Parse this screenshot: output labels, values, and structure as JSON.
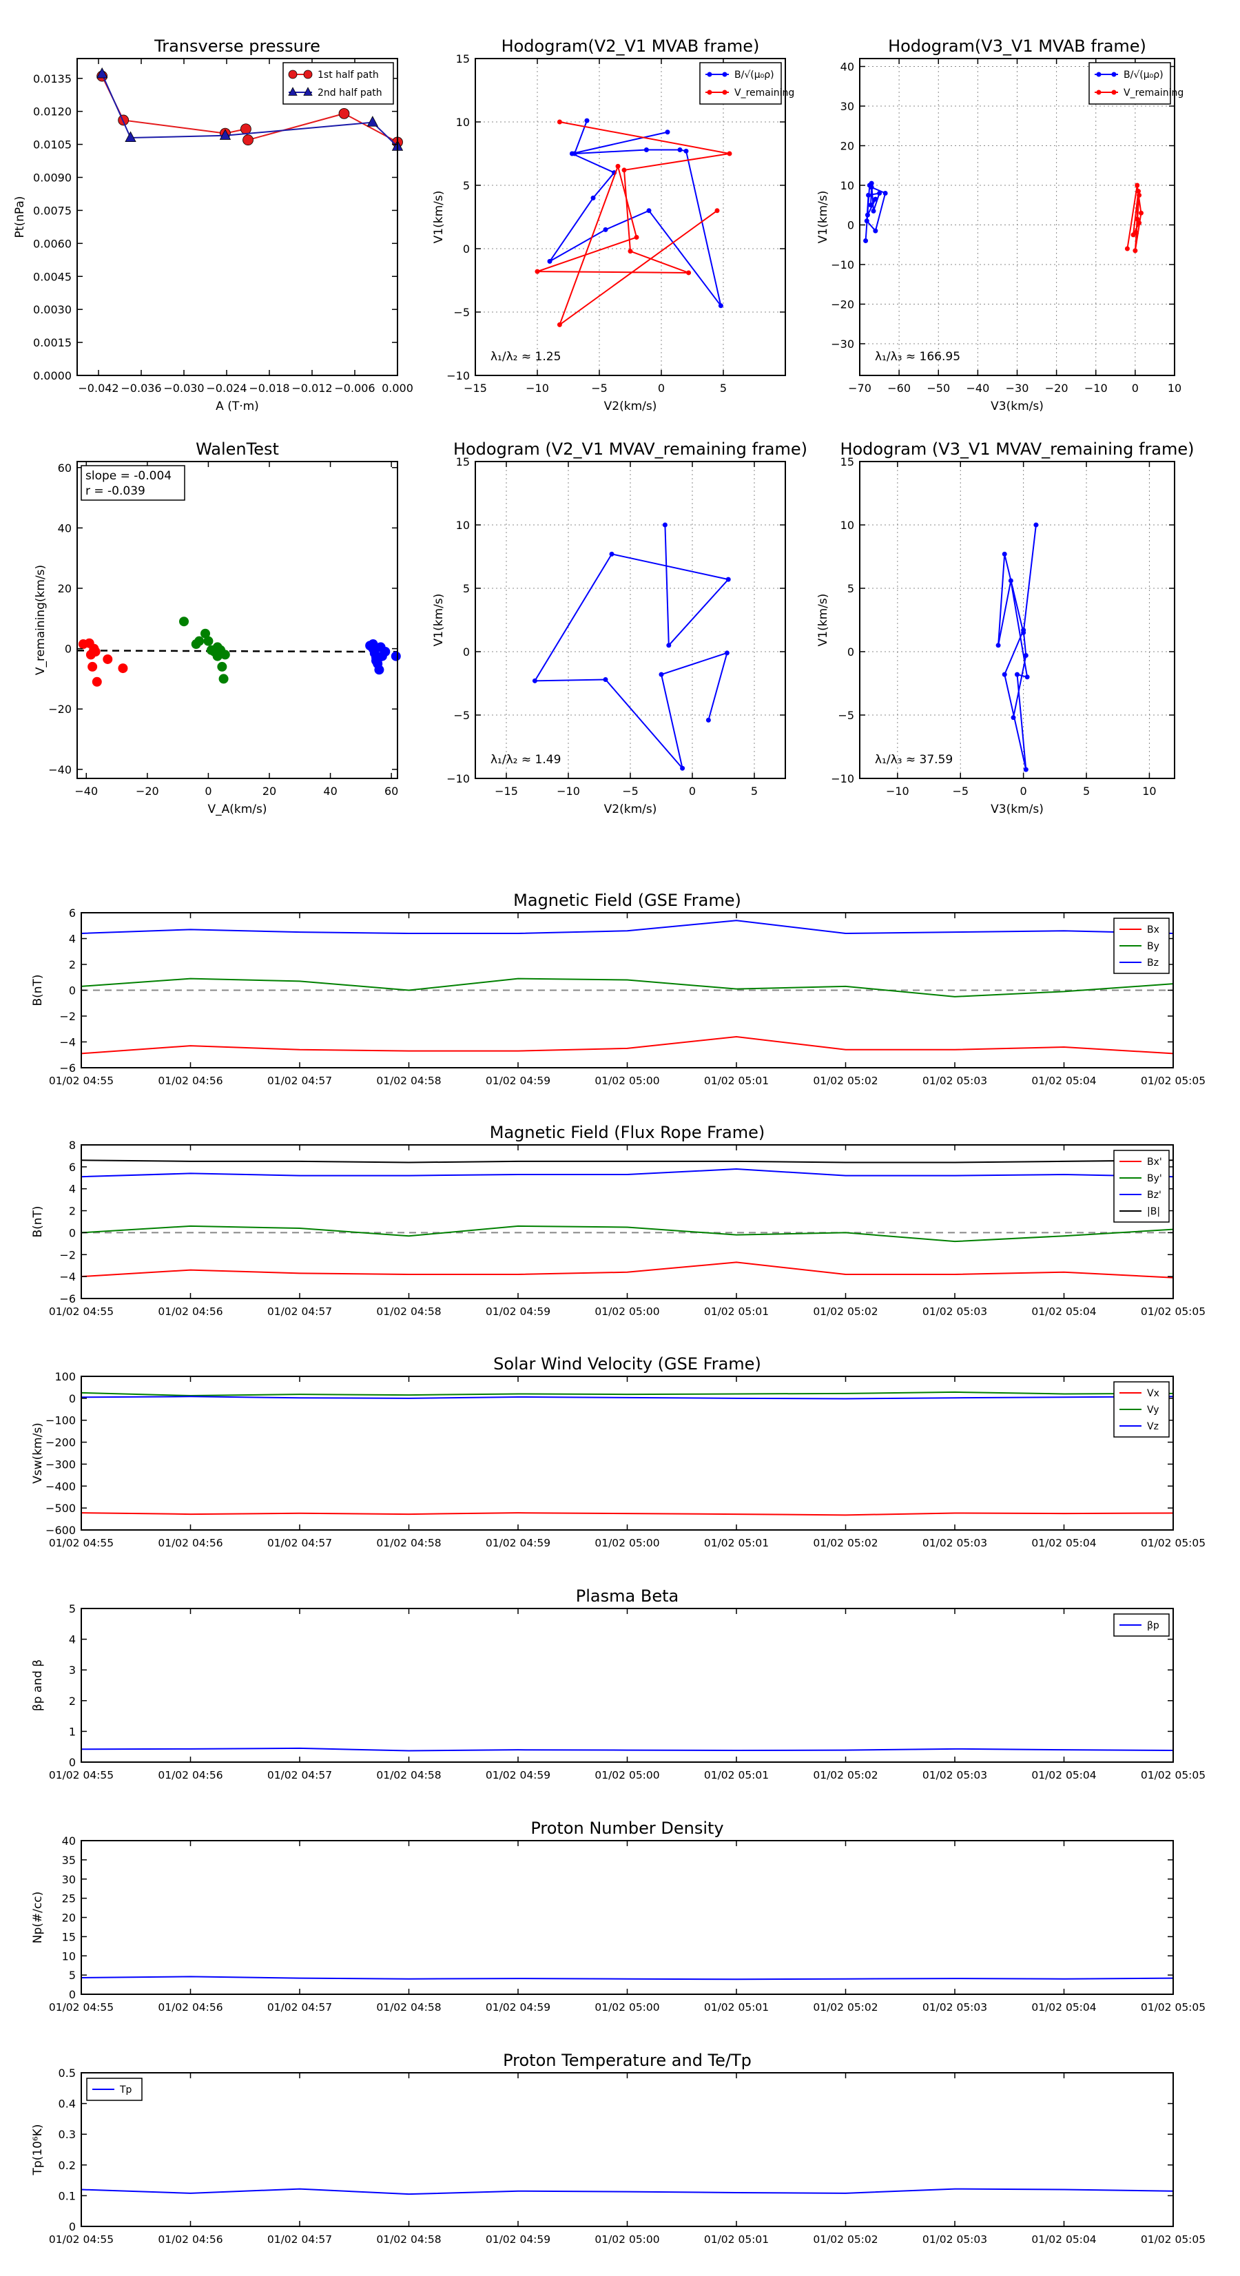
{
  "chart_data": [
    {
      "id": "transverse-pressure",
      "type": "line",
      "title": "Transverse pressure",
      "xlabel": "A (T·m)",
      "ylabel": "Pt(nPa)",
      "xlim": [
        -0.045,
        0.0
      ],
      "ylim": [
        0.0,
        0.0144
      ],
      "xticks": [
        -0.042,
        -0.036,
        -0.03,
        -0.024,
        -0.018,
        -0.012,
        -0.006,
        0.0
      ],
      "xticklabels": [
        "−0.042",
        "−0.036",
        "−0.030",
        "−0.024",
        "−0.018",
        "−0.012",
        "−0.006",
        "0.000"
      ],
      "yticks": [
        0.0,
        0.0015,
        0.003,
        0.0045,
        0.006,
        0.0075,
        0.009,
        0.0105,
        0.012,
        0.0135
      ],
      "yticklabels": [
        "0.0000",
        "0.0015",
        "0.0030",
        "0.0045",
        "0.0060",
        "0.0075",
        "0.0090",
        "0.0105",
        "0.0120",
        "0.0135"
      ],
      "grid": false,
      "legend": "top-right",
      "series": [
        {
          "name": "1st half path",
          "color": "#e41a1c",
          "marker": "circle",
          "x": [
            -0.0415,
            -0.0385,
            -0.0242,
            -0.0213,
            -0.021,
            -0.0075,
            0.0
          ],
          "y": [
            0.0136,
            0.0116,
            0.011,
            0.0112,
            0.0107,
            0.0119,
            0.0106
          ]
        },
        {
          "name": "2nd half path",
          "color": "#1a1aa8",
          "marker": "triangle",
          "x": [
            -0.0415,
            -0.0375,
            -0.0242,
            -0.0035,
            0.0
          ],
          "y": [
            0.0137,
            0.0108,
            0.0109,
            0.0115,
            0.0104
          ]
        }
      ]
    },
    {
      "id": "hodogram-v2-v1-mvab",
      "type": "line",
      "title": "Hodogram(V2_V1 MVAB frame)",
      "xlabel": "V2(km/s)",
      "ylabel": "V1(km/s)",
      "xlim": [
        -15,
        10
      ],
      "ylim": [
        -10,
        15
      ],
      "xticks": [
        -15,
        -10,
        -5,
        0,
        5
      ],
      "yticks": [
        -10,
        -5,
        0,
        5,
        10,
        15
      ],
      "grid": true,
      "legend": "top-right",
      "annotation": "λ₁/λ₂ ≈ 1.25",
      "series": [
        {
          "name": "B/√(μ₀ρ)",
          "color": "#0000ff",
          "x": [
            -6.0,
            -7.0,
            -1.2,
            1.5,
            2.0,
            4.8,
            -1.0,
            -4.5,
            -9.0,
            -5.5,
            -3.8,
            -7.2,
            0.5
          ],
          "y": [
            10.1,
            7.5,
            7.8,
            7.8,
            7.7,
            -4.5,
            3.0,
            1.5,
            -1.0,
            4.0,
            6.0,
            7.5,
            9.2
          ]
        },
        {
          "name": "V_remaining",
          "color": "#ff0000",
          "x": [
            -8.2,
            5.5,
            -3.0,
            -2.5,
            2.2,
            -10.0,
            -2.0,
            -3.5,
            -8.2,
            4.5
          ],
          "y": [
            10.0,
            7.5,
            6.2,
            -0.2,
            -1.9,
            -1.8,
            0.9,
            6.5,
            -6.0,
            3.0
          ]
        }
      ]
    },
    {
      "id": "hodogram-v3-v1-mvab",
      "type": "line",
      "title": "Hodogram(V3_V1 MVAB frame)",
      "xlabel": "V3(km/s)",
      "ylabel": "V1(km/s)",
      "xlim": [
        -70,
        10
      ],
      "ylim": [
        -38,
        42
      ],
      "xticks": [
        -70,
        -60,
        -50,
        -40,
        -30,
        -20,
        -10,
        0,
        10
      ],
      "yticks": [
        -30,
        -20,
        -10,
        0,
        10,
        20,
        30,
        40
      ],
      "grid": true,
      "legend": "top-right",
      "annotation": "λ₁/λ₃ ≈ 166.95",
      "series": [
        {
          "name": "B/√(μ₀ρ)",
          "color": "#0000ff",
          "x": [
            -68.5,
            -67.5,
            -67.0,
            -66.5,
            -65.0,
            -67.8,
            -68.2,
            -66.0,
            -63.5,
            -67.0,
            -67.2,
            -66.0,
            -68.0
          ],
          "y": [
            -4.0,
            10.0,
            10.5,
            3.5,
            8.0,
            7.5,
            1.0,
            -1.5,
            8.0,
            9.5,
            5.0,
            6.5,
            2.5
          ]
        },
        {
          "name": "V_remaining",
          "color": "#ff0000",
          "x": [
            -2.0,
            0.5,
            1.5,
            0.0,
            1.0,
            0.5,
            0.3,
            0.8,
            -0.5,
            1.0
          ],
          "y": [
            -6.0,
            10.0,
            3.0,
            -6.5,
            7.5,
            1.5,
            -2.0,
            8.5,
            -2.5,
            0.5
          ]
        }
      ]
    },
    {
      "id": "walen-test",
      "type": "scatter",
      "title": "WalenTest",
      "xlabel": "V_A(km/s)",
      "ylabel": "V_remaining(km/s)",
      "xlim": [
        -43,
        62
      ],
      "ylim": [
        -43,
        62
      ],
      "xticks": [
        -40,
        -20,
        0,
        20,
        40,
        60
      ],
      "yticks": [
        -40,
        -20,
        0,
        20,
        40,
        60
      ],
      "grid": false,
      "annotation": [
        "slope = -0.004",
        "r = -0.039"
      ],
      "fit": {
        "slope": -0.004,
        "intercept": -0.8,
        "color": "#000000",
        "style": "dashed"
      },
      "series": [
        {
          "color": "#ff0000",
          "x": [
            -41.0,
            -39.0,
            -38.5,
            -37.0,
            -38.0,
            -36.5,
            -33.0,
            -28.0,
            -37.5
          ],
          "y": [
            1.5,
            1.8,
            -2.0,
            -1.0,
            -6.0,
            -11.0,
            -3.5,
            -6.5,
            0.0
          ]
        },
        {
          "color": "#008000",
          "x": [
            -8.0,
            -4.0,
            -3.0,
            -1.0,
            0.0,
            1.0,
            2.0,
            3.0,
            4.0,
            4.5,
            5.0,
            5.5,
            4.0,
            3.0
          ],
          "y": [
            9.0,
            1.5,
            2.5,
            5.0,
            2.5,
            -0.5,
            -1.0,
            -2.5,
            -1.5,
            -6.0,
            -10.0,
            -2.0,
            -0.5,
            0.5
          ]
        },
        {
          "color": "#0000ff",
          "x": [
            53.0,
            54.0,
            54.5,
            55.0,
            55.5,
            56.0,
            56.5,
            57.0,
            54.0,
            55.0,
            58.0,
            61.5,
            55.5
          ],
          "y": [
            1.0,
            0.0,
            -1.5,
            -3.0,
            -5.0,
            -7.0,
            0.5,
            -2.5,
            1.5,
            -4.0,
            -1.0,
            -2.5,
            -3.5
          ]
        }
      ]
    },
    {
      "id": "hodogram-v2-v1-mvav",
      "type": "line",
      "title": "Hodogram (V2_V1 MVAV_remaining frame)",
      "xlabel": "V2(km/s)",
      "ylabel": "V1(km/s)",
      "xlim": [
        -17.5,
        7.5
      ],
      "ylim": [
        -10,
        15
      ],
      "xticks": [
        -15,
        -10,
        -5,
        0,
        5
      ],
      "yticks": [
        -10,
        -5,
        0,
        5,
        10,
        15
      ],
      "grid": true,
      "annotation": "λ₁/λ₂ ≈ 1.49",
      "series": [
        {
          "color": "#0000ff",
          "x": [
            -2.2,
            -1.9,
            2.9,
            -6.5,
            -12.7,
            -7.0,
            -0.8,
            -2.5,
            2.8,
            1.3
          ],
          "y": [
            10.0,
            0.5,
            5.7,
            7.7,
            -2.3,
            -2.2,
            -9.2,
            -1.8,
            -0.1,
            -5.4
          ]
        }
      ]
    },
    {
      "id": "hodogram-v3-v1-mvav",
      "type": "line",
      "title": "Hodogram (V3_V1 MVAV_remaining frame)",
      "xlabel": "V3(km/s)",
      "ylabel": "V1(km/s)",
      "xlim": [
        -13,
        12
      ],
      "ylim": [
        -10,
        15
      ],
      "xticks": [
        -10,
        -5,
        0,
        5,
        10
      ],
      "yticks": [
        -10,
        -5,
        0,
        5,
        10,
        15
      ],
      "grid": true,
      "annotation": "λ₁/λ₃ ≈ 37.59",
      "series": [
        {
          "color": "#0000ff",
          "x": [
            1.0,
            0.0,
            -1.5,
            -2.0,
            -1.0,
            0.3,
            -0.5,
            0.2,
            -1.5,
            0.0,
            0.2,
            -0.8
          ],
          "y": [
            10.0,
            1.5,
            7.7,
            0.5,
            5.6,
            -2.0,
            -1.8,
            -9.3,
            -1.8,
            1.7,
            -0.3,
            -5.2
          ]
        }
      ]
    },
    {
      "id": "magnetic-field-gse",
      "type": "line",
      "title": "Magnetic Field (GSE Frame)",
      "ylabel": "B(nT)",
      "x": [
        "01/02 04:55",
        "01/02 04:56",
        "01/02 04:57",
        "01/02 04:58",
        "01/02 04:59",
        "01/02 05:00",
        "01/02 05:01",
        "01/02 05:02",
        "01/02 05:03",
        "01/02 05:04",
        "01/02 05:05"
      ],
      "ylim": [
        -6,
        6
      ],
      "yticks": [
        -6,
        -4,
        -2,
        0,
        2,
        4,
        6
      ],
      "zero_line": true,
      "legend": "top-right",
      "series": [
        {
          "name": "Bx",
          "color": "#ff0000",
          "values": [
            -4.9,
            -4.3,
            -4.6,
            -4.7,
            -4.7,
            -4.5,
            -3.6,
            -4.6,
            -4.6,
            -4.4,
            -4.9
          ]
        },
        {
          "name": "By",
          "color": "#008000",
          "values": [
            0.3,
            0.9,
            0.7,
            0.0,
            0.9,
            0.8,
            0.1,
            0.3,
            -0.5,
            -0.1,
            0.5
          ]
        },
        {
          "name": "Bz",
          "color": "#0000ff",
          "values": [
            4.4,
            4.7,
            4.5,
            4.4,
            4.4,
            4.6,
            5.4,
            4.4,
            4.5,
            4.6,
            4.4
          ]
        }
      ]
    },
    {
      "id": "magnetic-field-flux-rope",
      "type": "line",
      "title": "Magnetic Field (Flux Rope Frame)",
      "ylabel": "B(nT)",
      "x": [
        "01/02 04:55",
        "01/02 04:56",
        "01/02 04:57",
        "01/02 04:58",
        "01/02 04:59",
        "01/02 05:00",
        "01/02 05:01",
        "01/02 05:02",
        "01/02 05:03",
        "01/02 05:04",
        "01/02 05:05"
      ],
      "ylim": [
        -6,
        8
      ],
      "yticks": [
        -6,
        -4,
        -2,
        0,
        2,
        4,
        6,
        8
      ],
      "zero_line": true,
      "legend": "top-right",
      "series": [
        {
          "name": "Bx'",
          "color": "#ff0000",
          "values": [
            -4.0,
            -3.4,
            -3.7,
            -3.8,
            -3.8,
            -3.6,
            -2.7,
            -3.8,
            -3.8,
            -3.6,
            -4.1
          ]
        },
        {
          "name": "By'",
          "color": "#008000",
          "values": [
            0.0,
            0.6,
            0.4,
            -0.3,
            0.6,
            0.5,
            -0.2,
            0.0,
            -0.8,
            -0.3,
            0.3
          ]
        },
        {
          "name": "Bz'",
          "color": "#0000ff",
          "values": [
            5.1,
            5.4,
            5.2,
            5.2,
            5.3,
            5.3,
            5.8,
            5.2,
            5.2,
            5.3,
            5.1
          ]
        },
        {
          "name": "|B|",
          "color": "#000000",
          "values": [
            6.6,
            6.5,
            6.5,
            6.4,
            6.5,
            6.5,
            6.5,
            6.4,
            6.4,
            6.5,
            6.6
          ]
        }
      ]
    },
    {
      "id": "solar-wind-velocity",
      "type": "line",
      "title": "Solar Wind Velocity (GSE Frame)",
      "ylabel": "Vsw(km/s)",
      "x": [
        "01/02 04:55",
        "01/02 04:56",
        "01/02 04:57",
        "01/02 04:58",
        "01/02 04:59",
        "01/02 05:00",
        "01/02 05:01",
        "01/02 05:02",
        "01/02 05:03",
        "01/02 05:04",
        "01/02 05:05"
      ],
      "ylim": [
        -600,
        100
      ],
      "yticks": [
        -600,
        -500,
        -400,
        -300,
        -200,
        -100,
        0,
        100
      ],
      "legend": "top-right",
      "series": [
        {
          "name": "Vx",
          "color": "#ff0000",
          "values": [
            -522,
            -528,
            -524,
            -528,
            -522,
            -525,
            -528,
            -532,
            -523,
            -525,
            -523
          ]
        },
        {
          "name": "Vy",
          "color": "#008000",
          "values": [
            25,
            12,
            18,
            15,
            20,
            18,
            20,
            22,
            28,
            20,
            22
          ]
        },
        {
          "name": "Vz",
          "color": "#0000ff",
          "values": [
            5,
            8,
            2,
            0,
            6,
            3,
            0,
            -2,
            2,
            5,
            8
          ]
        }
      ]
    },
    {
      "id": "plasma-beta",
      "type": "line",
      "title": "Plasma Beta",
      "ylabel": "βp and β",
      "x": [
        "01/02 04:55",
        "01/02 04:56",
        "01/02 04:57",
        "01/02 04:58",
        "01/02 04:59",
        "01/02 05:00",
        "01/02 05:01",
        "01/02 05:02",
        "01/02 05:03",
        "01/02 05:04",
        "01/02 05:05"
      ],
      "ylim": [
        0,
        5
      ],
      "yticks": [
        0,
        1,
        2,
        3,
        4,
        5
      ],
      "legend": "top-right",
      "series": [
        {
          "name": "βp",
          "color": "#0000ff",
          "values": [
            0.42,
            0.43,
            0.45,
            0.37,
            0.4,
            0.39,
            0.38,
            0.39,
            0.43,
            0.4,
            0.38
          ]
        }
      ]
    },
    {
      "id": "proton-number-density",
      "type": "line",
      "title": "Proton Number Density",
      "ylabel": "Np(#/cc)",
      "x": [
        "01/02 04:55",
        "01/02 04:56",
        "01/02 04:57",
        "01/02 04:58",
        "01/02 04:59",
        "01/02 05:00",
        "01/02 05:01",
        "01/02 05:02",
        "01/02 05:03",
        "01/02 05:04",
        "01/02 05:05"
      ],
      "ylim": [
        0,
        40
      ],
      "yticks": [
        0,
        5,
        10,
        15,
        20,
        25,
        30,
        35,
        40
      ],
      "series": [
        {
          "color": "#0000ff",
          "values": [
            4.3,
            4.6,
            4.2,
            4.0,
            4.1,
            4.0,
            3.9,
            4.0,
            4.1,
            4.0,
            4.2
          ]
        }
      ]
    },
    {
      "id": "proton-temperature",
      "type": "line",
      "title": "Proton Temperature and Te/Tp",
      "ylabel": "Tp(10⁶K)",
      "x": [
        "01/02 04:55",
        "01/02 04:56",
        "01/02 04:57",
        "01/02 04:58",
        "01/02 04:59",
        "01/02 05:00",
        "01/02 05:01",
        "01/02 05:02",
        "01/02 05:03",
        "01/02 05:04",
        "01/02 05:05"
      ],
      "ylim": [
        0,
        0.5
      ],
      "yticks": [
        0.0,
        0.1,
        0.2,
        0.3,
        0.4,
        0.5
      ],
      "legend": "top-left",
      "series": [
        {
          "name": "Tp",
          "color": "#0000ff",
          "values": [
            0.12,
            0.108,
            0.122,
            0.105,
            0.115,
            0.113,
            0.11,
            0.108,
            0.122,
            0.12,
            0.115
          ]
        }
      ]
    }
  ]
}
